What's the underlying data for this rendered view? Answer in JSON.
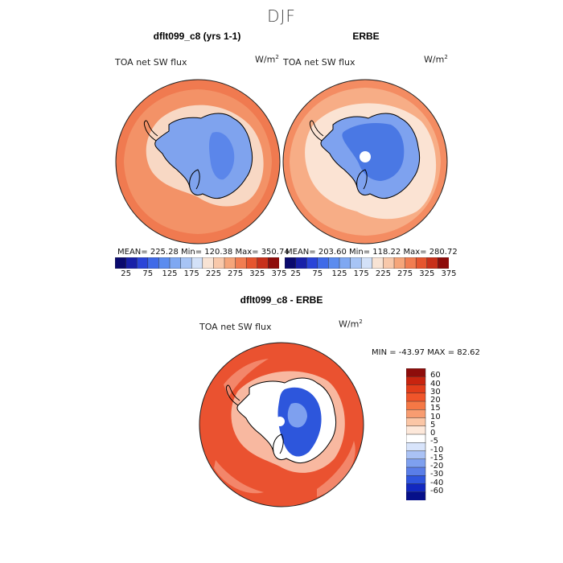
{
  "figure": {
    "season_title": "DJF",
    "panels": [
      {
        "title": "dflt099_c8 (yrs 1-1)",
        "variable_label": "TOA net SW flux",
        "units_label": "W/m",
        "units_exp": "2",
        "stats": {
          "mean": "225.28",
          "min": "120.38",
          "max": "350.74"
        },
        "stats_text": "MEAN= 225.28   Min= 120.38   Max= 350.74"
      },
      {
        "title": "ERBE",
        "variable_label": "TOA net SW flux",
        "units_label": "W/m",
        "units_exp": "2",
        "stats": {
          "mean": "203.60",
          "min": "118.22",
          "max": "280.72"
        },
        "stats_text": "MEAN= 203.60   Min= 118.22   Max= 280.72"
      }
    ],
    "difference": {
      "title": "dflt099_c8 - ERBE",
      "variable_label": "TOA net SW flux",
      "units_label": "W/m",
      "units_exp": "2",
      "min_max_text": "MIN = -43.97 MAX =  82.62"
    }
  },
  "chart_data": [
    {
      "type": "heatmap",
      "title": "dflt099_c8 (yrs 1-1)",
      "projection": "south-polar stereographic",
      "variable": "TOA net SW flux",
      "units": "W/m2",
      "stats": {
        "mean": 225.28,
        "min": 120.38,
        "max": 350.74
      },
      "colorbar": {
        "levels": [
          25,
          50,
          75,
          100,
          125,
          150,
          175,
          200,
          225,
          250,
          275,
          300,
          325,
          350,
          375
        ],
        "tick_labels": [
          "25",
          "75",
          "125",
          "175",
          "225",
          "275",
          "325",
          "375"
        ],
        "colors": [
          "#0a0a6e",
          "#1820a8",
          "#2a44d8",
          "#3f6ae8",
          "#5b8cef",
          "#7fa8f2",
          "#a7c4f5",
          "#d3e1f8",
          "#f8e3d4",
          "#f8c8aa",
          "#f5a57a",
          "#f17d51",
          "#e6552e",
          "#c8301a",
          "#8e0d0b"
        ]
      }
    },
    {
      "type": "heatmap",
      "title": "ERBE",
      "projection": "south-polar stereographic",
      "variable": "TOA net SW flux",
      "units": "W/m2",
      "stats": {
        "mean": 203.6,
        "min": 118.22,
        "max": 280.72
      },
      "colorbar": {
        "levels": [
          25,
          50,
          75,
          100,
          125,
          150,
          175,
          200,
          225,
          250,
          275,
          300,
          325,
          350,
          375
        ],
        "tick_labels": [
          "25",
          "75",
          "125",
          "175",
          "225",
          "275",
          "325",
          "375"
        ],
        "colors": [
          "#0a0a6e",
          "#1820a8",
          "#2a44d8",
          "#3f6ae8",
          "#5b8cef",
          "#7fa8f2",
          "#a7c4f5",
          "#d3e1f8",
          "#f8e3d4",
          "#f8c8aa",
          "#f5a57a",
          "#f17d51",
          "#e6552e",
          "#c8301a",
          "#8e0d0b"
        ]
      }
    },
    {
      "type": "heatmap",
      "title": "dflt099_c8 - ERBE",
      "projection": "south-polar stereographic",
      "variable": "TOA net SW flux",
      "units": "W/m2",
      "stats": {
        "min": -43.97,
        "max": 82.62
      },
      "colorbar": {
        "orientation": "vertical",
        "levels": [
          "60",
          "40",
          "30",
          "20",
          "15",
          "10",
          "5",
          "0",
          "-5",
          "-10",
          "-15",
          "-20",
          "-30",
          "-40",
          "-60"
        ],
        "colors": [
          "#8e0d0b",
          "#c8240f",
          "#e23d1a",
          "#f0552a",
          "#f57845",
          "#f89c70",
          "#fbc6a6",
          "#fde8da",
          "#ffffff",
          "#d8e4fb",
          "#aac2f5",
          "#7ea0ef",
          "#5a7ee8",
          "#2f55de",
          "#1228c0",
          "#06108a"
        ]
      }
    }
  ],
  "map_fill": {
    "panel_a": {
      "ocean": "#f07a50",
      "band": "#f5a57a",
      "ice_edge": "#f8d8c4",
      "continent": "#7fa3ee",
      "plateau": "#5b86ea"
    },
    "panel_b": {
      "ocean": "#f48c62",
      "band": "#f8bb96",
      "ice_edge": "#fbe3d3",
      "continent": "#7ea2ef",
      "plateau": "#4a78e4"
    },
    "panel_c": {
      "ocean": "#ea5230",
      "band": "#f3866a",
      "ice_edge": "#fbd2bd",
      "continent": "#ffffff",
      "plateau": "#2d56dc"
    }
  }
}
